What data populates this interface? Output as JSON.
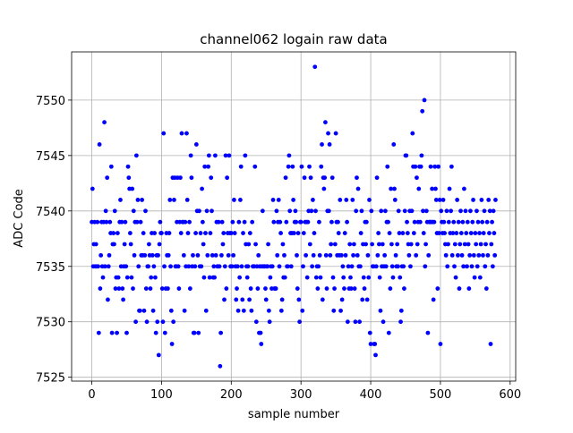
{
  "chart_data": {
    "type": "scatter",
    "title": "channel062 logain raw data",
    "xlabel": "sample number",
    "ylabel": "ADC Code",
    "color": "#0000ff",
    "grid": true,
    "xlim": [
      -28.95,
      607.95
    ],
    "xticks": [
      0,
      100,
      200,
      300,
      400,
      500,
      600
    ],
    "ylim": [
      7524.65,
      7554.35
    ],
    "yticks": [
      7525,
      7530,
      7535,
      7540,
      7545,
      7550
    ],
    "values": [
      7539,
      7542,
      7535,
      7537,
      7539,
      7535,
      7537,
      7535,
      7539,
      7535,
      7529,
      7546,
      7533,
      7536,
      7539,
      7535,
      7534,
      7539,
      7548,
      7535,
      7540,
      7539,
      7543,
      7532,
      7535,
      7536,
      7539,
      7538,
      7544,
      7529,
      7537,
      7538,
      7537,
      7540,
      7533,
      7534,
      7529,
      7538,
      7534,
      7533,
      7539,
      7541,
      7535,
      7539,
      7533,
      7532,
      7535,
      7537,
      7539,
      7535,
      7529,
      7534,
      7544,
      7543,
      7542,
      7538,
      7537,
      7534,
      7542,
      7533,
      7540,
      7536,
      7539,
      7530,
      7545,
      7539,
      7541,
      7535,
      7531,
      7531,
      7539,
      7536,
      7541,
      7536,
      7538,
      7531,
      7536,
      7540,
      7533,
      7530,
      7535,
      7535,
      7537,
      7536,
      7533,
      7534,
      7538,
      7536,
      7531,
      7535,
      7538,
      7534,
      7529,
      7536,
      7530,
      7536,
      7527,
      7537,
      7539,
      7538,
      7538,
      7533,
      7530,
      7547,
      7535,
      7529,
      7533,
      7538,
      7536,
      7533,
      7536,
      7538,
      7541,
      7535,
      7531,
      7528,
      7543,
      7530,
      7541,
      7543,
      7535,
      7535,
      7539,
      7543,
      7535,
      7533,
      7539,
      7543,
      7538,
      7547,
      7539,
      7539,
      7536,
      7531,
      7539,
      7535,
      7547,
      7541,
      7538,
      7535,
      7539,
      7533,
      7545,
      7543,
      7535,
      7536,
      7529,
      7529,
      7535,
      7538,
      7546,
      7540,
      7536,
      7529,
      7540,
      7535,
      7538,
      7535,
      7542,
      7539,
      7537,
      7534,
      7544,
      7538,
      7531,
      7540,
      7536,
      7544,
      7545,
      7534,
      7538,
      7543,
      7540,
      7536,
      7534,
      7535,
      7534,
      7545,
      7536,
      7539,
      7535,
      7535,
      7539,
      7535,
      7526,
      7529,
      7536,
      7539,
      7537,
      7538,
      7532,
      7535,
      7545,
      7533,
      7543,
      7538,
      7536,
      7545,
      7538,
      7535,
      7538,
      7535,
      7539,
      7536,
      7541,
      7538,
      7535,
      7532,
      7533,
      7535,
      7531,
      7539,
      7534,
      7541,
      7544,
      7535,
      7532,
      7538,
      7531,
      7539,
      7545,
      7537,
      7535,
      7534,
      7535,
      7537,
      7532,
      7538,
      7533,
      7531,
      7539,
      7535,
      7535,
      7535,
      7544,
      7537,
      7530,
      7535,
      7533,
      7536,
      7529,
      7535,
      7529,
      7528,
      7535,
      7540,
      7535,
      7535,
      7535,
      7533,
      7532,
      7535,
      7535,
      7537,
      7531,
      7530,
      7534,
      7535,
      7533,
      7535,
      7541,
      7539,
      7533,
      7533,
      7533,
      7540,
      7536,
      7539,
      7541,
      7535,
      7539,
      7538,
      7531,
      7532,
      7537,
      7534,
      7536,
      7534,
      7543,
      7539,
      7535,
      7535,
      7544,
      7545,
      7540,
      7538,
      7535,
      7538,
      7544,
      7541,
      7538,
      7539,
      7540,
      7539,
      7536,
      7533,
      7538,
      7532,
      7530,
      7539,
      7539,
      7544,
      7531,
      7535,
      7538,
      7543,
      7539,
      7536,
      7539,
      7534,
      7539,
      7540,
      7544,
      7537,
      7543,
      7540,
      7535,
      7541,
      7536,
      7538,
      7553,
      7540,
      7534,
      7535,
      7533,
      7535,
      7539,
      7536,
      7534,
      7544,
      7546,
      7532,
      7543,
      7542,
      7543,
      7548,
      7536,
      7533,
      7540,
      7547,
      7540,
      7546,
      7536,
      7537,
      7539,
      7543,
      7534,
      7531,
      7533,
      7537,
      7547,
      7539,
      7536,
      7539,
      7538,
      7536,
      7541,
      7531,
      7536,
      7532,
      7535,
      7534,
      7533,
      7538,
      7536,
      7541,
      7539,
      7530,
      7535,
      7533,
      7537,
      7534,
      7533,
      7535,
      7541,
      7536,
      7537,
      7533,
      7530,
      7540,
      7543,
      7536,
      7542,
      7535,
      7530,
      7535,
      7538,
      7540,
      7532,
      7537,
      7534,
      7533,
      7539,
      7537,
      7539,
      7532,
      7536,
      7534,
      7541,
      7529,
      7528,
      7540,
      7537,
      7535,
      7535,
      7528,
      7528,
      7527,
      7535,
      7543,
      7536,
      7538,
      7537,
      7534,
      7531,
      7540,
      7535,
      7537,
      7530,
      7535,
      7536,
      7540,
      7535,
      7539,
      7544,
      7539,
      7529,
      7538,
      7533,
      7542,
      7537,
      7535,
      7534,
      7546,
      7542,
      7541,
      7536,
      7535,
      7537,
      7535,
      7540,
      7538,
      7534,
      7530,
      7531,
      7535,
      7538,
      7535,
      7533,
      7540,
      7545,
      7545,
      7539,
      7538,
      7537,
      7536,
      7540,
      7535,
      7537,
      7540,
      7547,
      7544,
      7538,
      7539,
      7544,
      7536,
      7543,
      7537,
      7539,
      7542,
      7544,
      7539,
      7544,
      7545,
      7549,
      7540,
      7538,
      7550,
      7535,
      7537,
      7540,
      7539,
      7529,
      7536,
      7539,
      7539,
      7544,
      7539,
      7542,
      7539,
      7532,
      7539,
      7544,
      7542,
      7541,
      7538,
      7533,
      7544,
      7538,
      7541,
      7528,
      7540,
      7539,
      7538,
      7541,
      7539,
      7538,
      7537,
      7536,
      7540,
      7535,
      7537,
      7539,
      7542,
      7538,
      7540,
      7544,
      7536,
      7538,
      7539,
      7535,
      7537,
      7534,
      7538,
      7541,
      7536,
      7539,
      7533,
      7537,
      7540,
      7538,
      7536,
      7539,
      7535,
      7542,
      7537,
      7540,
      7538,
      7535,
      7539,
      7537,
      7533,
      7536,
      7540,
      7538,
      7535,
      7539,
      7541,
      7536,
      7534,
      7538,
      7537,
      7540,
      7535,
      7539,
      7536,
      7538,
      7534,
      7537,
      7541,
      7539,
      7536,
      7538,
      7540,
      7535,
      7537,
      7533,
      7539,
      7536,
      7541,
      7538,
      7540,
      7528,
      7537,
      7539,
      7535,
      7540,
      7538,
      7536,
      7541
    ]
  }
}
